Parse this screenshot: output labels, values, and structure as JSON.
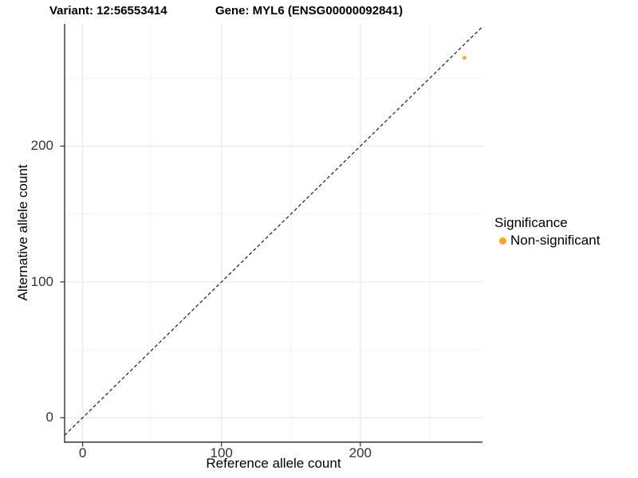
{
  "chart_data": {
    "type": "scatter",
    "titles": {
      "left": "Variant: 12:56553414",
      "right": "Gene: MYL6 (ENSG00000092841)"
    },
    "xlabel": "Reference allele count",
    "ylabel": "Alternative allele count",
    "xlim": [
      -13,
      288
    ],
    "ylim": [
      -18,
      290
    ],
    "x_ticks": [
      "0",
      "100",
      "200"
    ],
    "y_ticks": [
      "0",
      "100",
      "200"
    ],
    "x_tick_values": [
      0,
      100,
      200
    ],
    "y_tick_values": [
      0,
      100,
      200
    ],
    "x_minor_gridlines": [
      50,
      150,
      250
    ],
    "y_minor_gridlines": [
      50,
      150,
      250
    ],
    "grid": "major and minor, light gray on white",
    "points": [
      {
        "x": 275,
        "y": 265,
        "series": "Non-significant",
        "color": "#FFA41E",
        "radius": 2.4
      }
    ],
    "reference_line": {
      "kind": "identity (y = x)",
      "slope": 1,
      "intercept": 0,
      "linetype": "dashed",
      "color": "#1A1A1A"
    },
    "legend": {
      "title": "Significance",
      "position": "right",
      "items": [
        {
          "label": "Non-significant",
          "color": "#FFA41E"
        }
      ]
    }
  },
  "colors": {
    "background": "#FFFFFF",
    "grid_major": "#E7E7E7",
    "grid_minor": "#F1F1F1",
    "axis_line": "#333333",
    "tick_mark": "#333333",
    "tick_text": "#333333",
    "title_text": "#000000",
    "point": "#FFA41E"
  }
}
